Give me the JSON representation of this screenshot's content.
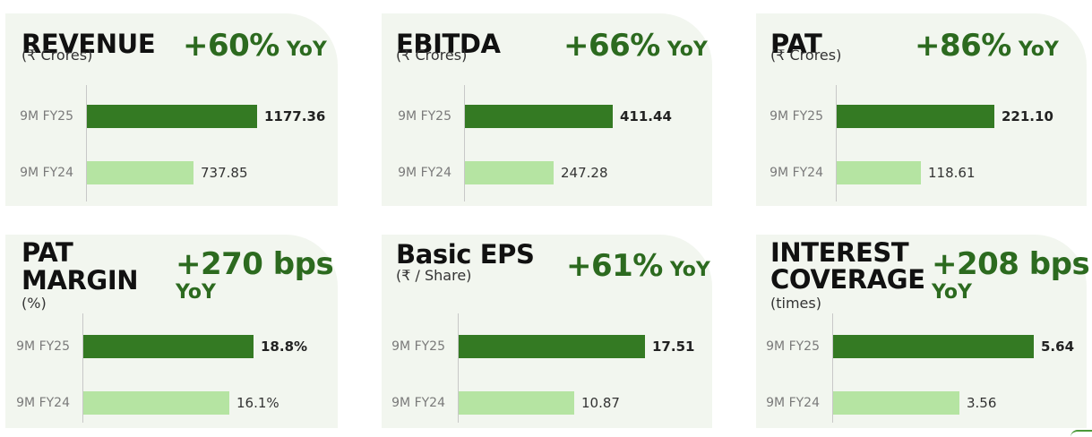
{
  "colors": {
    "card_bg": "#f2f6ef",
    "fy25_bar": "#347a23",
    "fy24_bar": "#b5e4a2",
    "growth_text": "#2c6a1f"
  },
  "chart_data": [
    {
      "type": "bar",
      "title": "REVENUE",
      "subtitle": "(₹ Crores)",
      "growth": "+60%",
      "growth_suffix": "YoY",
      "categories": [
        "9M FY25",
        "9M FY24"
      ],
      "values": [
        1177.36,
        737.85
      ],
      "value_labels": [
        "1177.36",
        "737.85"
      ]
    },
    {
      "type": "bar",
      "title": "EBITDA",
      "subtitle": "(₹ Crores)",
      "growth": "+66%",
      "growth_suffix": "YoY",
      "categories": [
        "9M FY25",
        "9M FY24"
      ],
      "values": [
        411.44,
        247.28
      ],
      "value_labels": [
        "411.44",
        "247.28"
      ]
    },
    {
      "type": "bar",
      "title": "PAT",
      "subtitle": "(₹ Crores)",
      "growth": "+86%",
      "growth_suffix": "YoY",
      "categories": [
        "9M FY25",
        "9M FY24"
      ],
      "values": [
        221.1,
        118.61
      ],
      "value_labels": [
        "221.10",
        "118.61"
      ]
    },
    {
      "type": "bar",
      "title": "PAT MARGIN",
      "subtitle": "(%)",
      "growth": "+270 bps",
      "growth_suffix": "YoY",
      "categories": [
        "9M FY25",
        "9M FY24"
      ],
      "values": [
        18.8,
        16.1
      ],
      "value_labels": [
        "18.8%",
        "16.1%"
      ]
    },
    {
      "type": "bar",
      "title": "Basic EPS",
      "subtitle": "(₹ / Share)",
      "growth": "+61%",
      "growth_suffix": "YoY",
      "categories": [
        "9M FY25",
        "9M FY24"
      ],
      "values": [
        17.51,
        10.87
      ],
      "value_labels": [
        "17.51",
        "10.87"
      ]
    },
    {
      "type": "bar",
      "title": "INTEREST COVERAGE",
      "subtitle": "(times)",
      "growth": "+208 bps",
      "growth_suffix": "YoY",
      "categories": [
        "9M FY25",
        "9M FY24"
      ],
      "values": [
        5.64,
        3.56
      ],
      "value_labels": [
        "5.64",
        "3.56"
      ]
    }
  ]
}
